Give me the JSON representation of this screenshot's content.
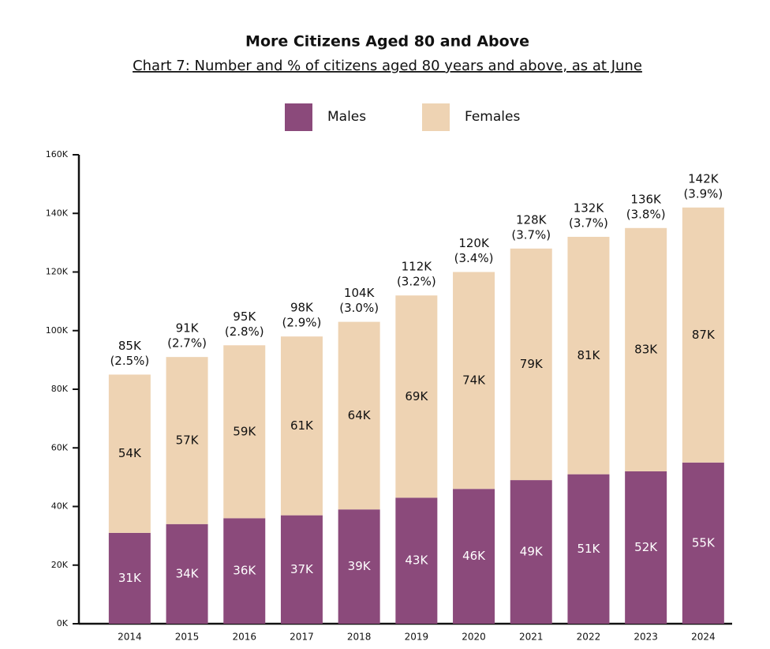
{
  "chart_data": {
    "type": "stacked_bar",
    "title": "More Citizens Aged 80 and Above",
    "subtitle": "Chart 7: Number and % of citizens aged 80 years and above, as at June",
    "categories": [
      "2014",
      "2015",
      "2016",
      "2017",
      "2018",
      "2019",
      "2020",
      "2021",
      "2022",
      "2023",
      "2024"
    ],
    "series": [
      {
        "name": "Males",
        "color": "#8b4a7b",
        "values": [
          31000,
          34000,
          36000,
          37000,
          39000,
          43000,
          46000,
          49000,
          51000,
          52000,
          55000
        ],
        "value_labels": [
          "31K",
          "34K",
          "36K",
          "37K",
          "39K",
          "43K",
          "46K",
          "49K",
          "51K",
          "52K",
          "55K"
        ]
      },
      {
        "name": "Females",
        "color": "#eed3b3",
        "values": [
          54000,
          57000,
          59000,
          61000,
          64000,
          69000,
          74000,
          79000,
          81000,
          83000,
          87000
        ],
        "value_labels": [
          "54K",
          "57K",
          "59K",
          "61K",
          "64K",
          "69K",
          "74K",
          "79K",
          "81K",
          "83K",
          "87K"
        ]
      }
    ],
    "totals": [
      85000,
      91000,
      95000,
      98000,
      104000,
      112000,
      120000,
      128000,
      132000,
      136000,
      142000
    ],
    "total_labels": [
      "85K",
      "91K",
      "95K",
      "98K",
      "104K",
      "112K",
      "120K",
      "128K",
      "132K",
      "136K",
      "142K"
    ],
    "shares": [
      2.5,
      2.7,
      2.8,
      2.9,
      3.0,
      3.2,
      3.4,
      3.7,
      3.7,
      3.8,
      3.9
    ],
    "share_labels": [
      "(2.5%)",
      "(2.7%)",
      "(2.8%)",
      "(2.9%)",
      "(3.0%)",
      "(3.2%)",
      "(3.4%)",
      "(3.7%)",
      "(3.7%)",
      "(3.8%)",
      "(3.9%)"
    ],
    "ylim": [
      0,
      160000
    ],
    "yticks": [
      {
        "value": 0,
        "label": "0K"
      },
      {
        "value": 20000,
        "label": "20K"
      },
      {
        "value": 40000,
        "label": "40K"
      },
      {
        "value": 60000,
        "label": "60K"
      },
      {
        "value": 80000,
        "label": "80K"
      },
      {
        "value": 100000,
        "label": "100K"
      },
      {
        "value": 120000,
        "label": "120K"
      },
      {
        "value": 140000,
        "label": "140K"
      },
      {
        "value": 160000,
        "label": "160K"
      }
    ],
    "legend": "top"
  }
}
